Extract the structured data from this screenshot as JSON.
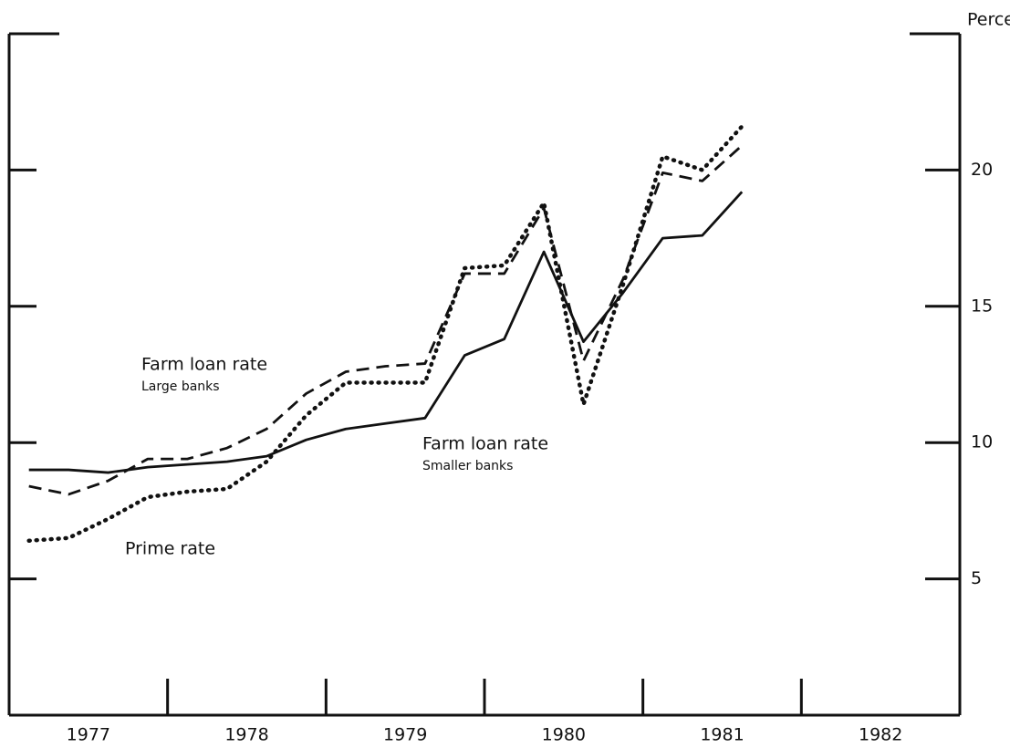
{
  "chart_data": {
    "type": "line",
    "y_axis_label": "Percent",
    "x": [
      1977.125,
      1977.375,
      1977.625,
      1977.875,
      1978.125,
      1978.375,
      1978.625,
      1978.875,
      1979.125,
      1979.375,
      1979.625,
      1979.875,
      1980.125,
      1980.375,
      1980.625,
      1980.875,
      1981.125,
      1981.375,
      1981.625
    ],
    "series": [
      {
        "name": "Farm loan rate",
        "note": "Smaller banks",
        "color": "#111111",
        "style": "solid",
        "values": [
          9.0,
          9.0,
          8.9,
          9.1,
          9.2,
          9.3,
          9.5,
          10.1,
          10.5,
          10.7,
          10.9,
          13.2,
          13.8,
          17.0,
          13.7,
          15.5,
          17.5,
          17.6,
          19.2
        ]
      },
      {
        "name": "Farm loan rate",
        "note": "Large banks",
        "color": "#111111",
        "style": "dashed",
        "values": [
          8.4,
          8.1,
          8.6,
          9.4,
          9.4,
          9.8,
          10.5,
          11.8,
          12.6,
          12.8,
          12.9,
          16.2,
          16.2,
          18.6,
          13.0,
          16.0,
          19.9,
          19.6,
          20.9
        ]
      },
      {
        "name": "Prime rate",
        "color": "#111111",
        "style": "dotted",
        "values": [
          6.4,
          6.5,
          7.2,
          8.0,
          8.2,
          8.3,
          9.3,
          11.0,
          12.2,
          12.2,
          12.2,
          16.4,
          16.5,
          18.8,
          11.4,
          15.8,
          20.5,
          20.0,
          21.6
        ]
      }
    ],
    "xlim": [
      1977,
      1983
    ],
    "xticks": [
      {
        "value": 1977.5,
        "label": "1977"
      },
      {
        "value": 1978.5,
        "label": "1978"
      },
      {
        "value": 1979.5,
        "label": "1979"
      },
      {
        "value": 1980.5,
        "label": "1980"
      },
      {
        "value": 1981.5,
        "label": "1981"
      },
      {
        "value": 1982.5,
        "label": "1982"
      }
    ],
    "x_tick_marks": [
      1978,
      1979,
      1980,
      1981,
      1982
    ],
    "ylim": [
      0,
      25
    ],
    "yticks": [
      5,
      10,
      15,
      20
    ],
    "grid": false
  }
}
